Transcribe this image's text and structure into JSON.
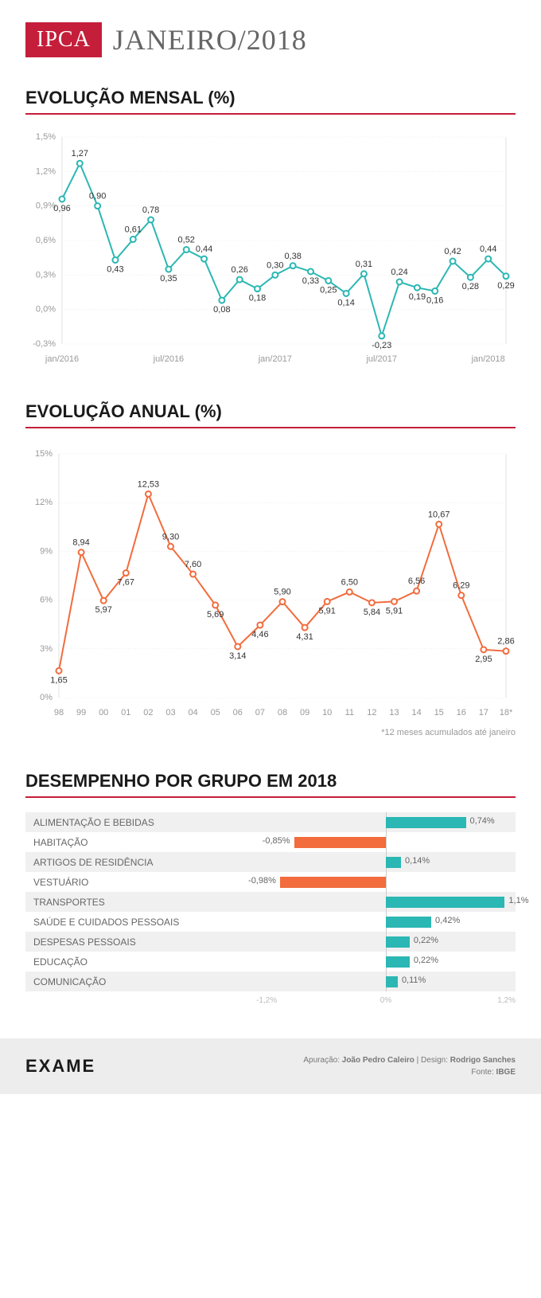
{
  "header": {
    "badge": "IPCA",
    "title": "JANEIRO/2018"
  },
  "monthly": {
    "title": "EVOLUÇÃO MENSAL (%)",
    "line_color": "#2bb7b3",
    "marker_fill": "#ffffff",
    "grid_color": "#e0e0e0",
    "ylim": [
      -0.3,
      1.5
    ],
    "yticks": [
      "-0,3%",
      "0,0%",
      "0,3%",
      "0,6%",
      "0,9%",
      "1,2%",
      "1,5%"
    ],
    "xticks": [
      "jan/2016",
      "jul/2016",
      "jan/2017",
      "jul/2017",
      "jan/2018"
    ],
    "values": [
      0.96,
      1.27,
      0.9,
      0.43,
      0.61,
      0.78,
      0.35,
      0.52,
      0.44,
      0.08,
      0.26,
      0.18,
      0.3,
      0.38,
      0.33,
      0.25,
      0.14,
      0.31,
      -0.23,
      0.24,
      0.19,
      0.16,
      0.42,
      0.28,
      0.44,
      0.29
    ],
    "labels": [
      "0,96",
      "1,27",
      "0,90",
      "0,43",
      "0,61",
      "0,78",
      "0,35",
      "0,52",
      "0,44",
      "0,08",
      "0,26",
      "0,18",
      "0,30",
      "0,38",
      "0,33",
      "0,25",
      "0,14",
      "0,31",
      "-0,23",
      "0,24",
      "0,19",
      "0,16",
      "0,42",
      "0,28",
      "0,44",
      "0,29"
    ],
    "label_pos": [
      "b",
      "t",
      "t",
      "b",
      "t",
      "t",
      "b",
      "t",
      "t",
      "b",
      "t",
      "b",
      "t",
      "t",
      "b",
      "b",
      "b",
      "t",
      "b",
      "t",
      "b",
      "b",
      "t",
      "b",
      "t",
      "b"
    ]
  },
  "annual": {
    "title": "EVOLUÇÃO ANUAL (%)",
    "line_color": "#f26c3d",
    "marker_fill": "#ffffff",
    "grid_color": "#e0e0e0",
    "ylim": [
      0,
      15
    ],
    "yticks": [
      "0%",
      "3%",
      "6%",
      "9%",
      "12%",
      "15%"
    ],
    "xlabels": [
      "98",
      "99",
      "00",
      "01",
      "02",
      "03",
      "04",
      "05",
      "06",
      "07",
      "08",
      "09",
      "10",
      "11",
      "12",
      "13",
      "14",
      "15",
      "16",
      "17",
      "18*"
    ],
    "values": [
      1.65,
      8.94,
      5.97,
      7.67,
      12.53,
      9.3,
      7.6,
      5.69,
      3.14,
      4.46,
      5.9,
      4.31,
      5.91,
      6.5,
      5.84,
      5.91,
      6.56,
      10.67,
      6.29,
      2.95,
      2.86
    ],
    "labels": [
      "1,65",
      "8,94",
      "5,97",
      "7,67",
      "12,53",
      "9,30",
      "7,60",
      "5,69",
      "3,14",
      "4,46",
      "5,90",
      "4,31",
      "5,91",
      "6,50",
      "5,84",
      "5,91",
      "6,56",
      "10,67",
      "6,29",
      "2,95",
      "2,86"
    ],
    "label_pos": [
      "b",
      "t",
      "b",
      "b",
      "t",
      "t",
      "t",
      "b",
      "b",
      "b",
      "t",
      "b",
      "b",
      "t",
      "b",
      "b",
      "t",
      "t",
      "t",
      "b",
      "t"
    ],
    "footnote": "*12 meses acumulados até janeiro"
  },
  "groups": {
    "title": "DESEMPENHO POR GRUPO EM 2018",
    "pos_color": "#2bb7b3",
    "neg_color": "#f26c3d",
    "xlim": [
      -1.2,
      1.2
    ],
    "axis_labels": [
      "-1,2%",
      "0%",
      "1,2%"
    ],
    "items": [
      {
        "name": "ALIMENTAÇÃO E BEBIDAS",
        "value": 0.74,
        "label": "0,74%"
      },
      {
        "name": "HABITAÇÃO",
        "value": -0.85,
        "label": "-0,85%"
      },
      {
        "name": "ARTIGOS DE RESIDÊNCIA",
        "value": 0.14,
        "label": "0,14%"
      },
      {
        "name": "VESTUÁRIO",
        "value": -0.98,
        "label": "-0,98%"
      },
      {
        "name": "TRANSPORTES",
        "value": 1.1,
        "label": "1,1%"
      },
      {
        "name": "SAÚDE E CUIDADOS PESSOAIS",
        "value": 0.42,
        "label": "0,42%"
      },
      {
        "name": "DESPESAS PESSOAIS",
        "value": 0.22,
        "label": "0,22%"
      },
      {
        "name": "EDUCAÇÃO",
        "value": 0.22,
        "label": "0,22%"
      },
      {
        "name": "COMUNICAÇÃO",
        "value": 0.11,
        "label": "0,11%"
      }
    ]
  },
  "footer": {
    "brand": "EXAME",
    "line1_a": "Apuração: ",
    "line1_b": "João Pedro Caleiro",
    "line1_c": "  |  Design: ",
    "line1_d": "Rodrigo Sanches",
    "line2_a": "Fonte: ",
    "line2_b": "IBGE"
  }
}
